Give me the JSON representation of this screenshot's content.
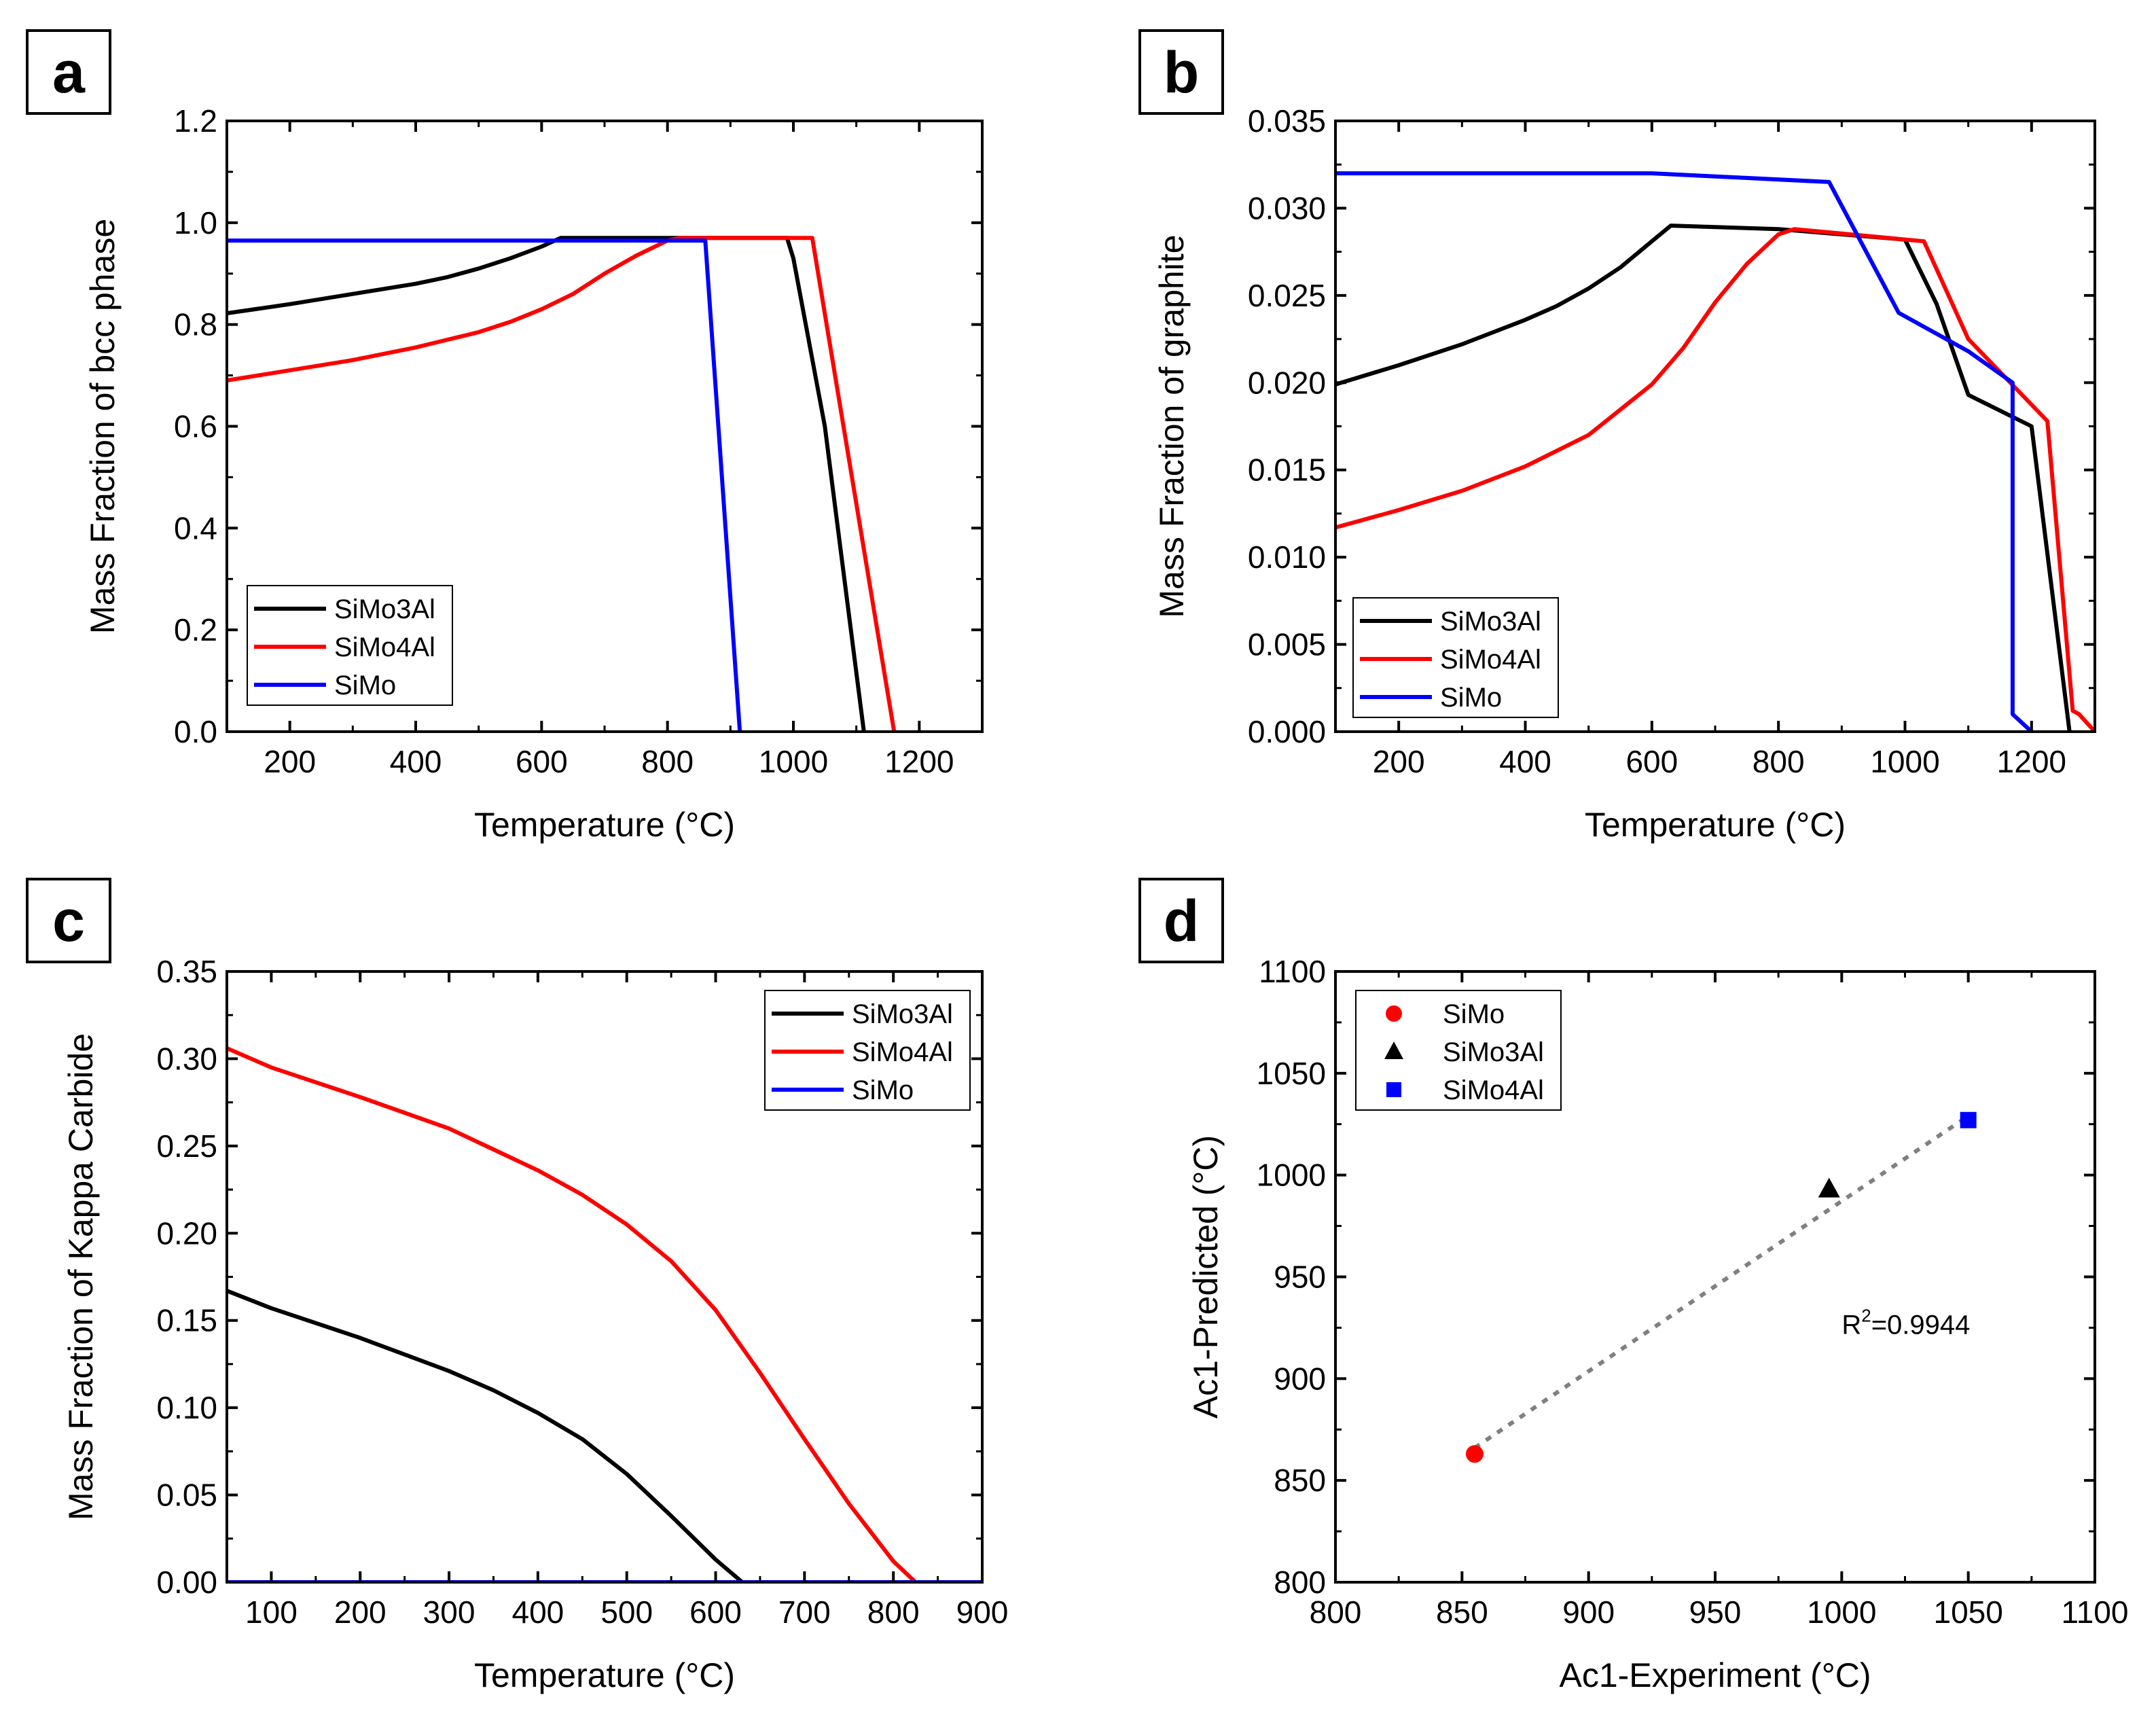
{
  "chart_data": [
    {
      "panel": "a",
      "type": "line",
      "xlabel": "Temperature (°C)",
      "ylabel": "Mass Fraction of bcc phase",
      "xlim": [
        100,
        1300
      ],
      "ylim": [
        0,
        1.2
      ],
      "xticks": [
        200,
        400,
        600,
        800,
        1000,
        1200
      ],
      "yticks": [
        0.0,
        0.2,
        0.4,
        0.6,
        0.8,
        1.0,
        1.2
      ],
      "ytick_decimals": 1,
      "legend": "bottom-left",
      "series": [
        {
          "name": "SiMo3Al",
          "color": "#000000",
          "x": [
            100,
            200,
            300,
            400,
            450,
            500,
            550,
            600,
            630,
            990,
            1000,
            1050,
            1112
          ],
          "y": [
            0.822,
            0.84,
            0.86,
            0.88,
            0.893,
            0.91,
            0.93,
            0.953,
            0.97,
            0.97,
            0.93,
            0.6,
            0.0
          ]
        },
        {
          "name": "SiMo4Al",
          "color": "#ff0000",
          "x": [
            100,
            200,
            300,
            400,
            500,
            550,
            600,
            650,
            700,
            750,
            800,
            820,
            1030,
            1160
          ],
          "y": [
            0.69,
            0.71,
            0.73,
            0.755,
            0.785,
            0.805,
            0.83,
            0.86,
            0.9,
            0.935,
            0.965,
            0.97,
            0.97,
            0.0
          ]
        },
        {
          "name": "SiMo",
          "color": "#0000ff",
          "x": [
            100,
            860,
            915
          ],
          "y": [
            0.965,
            0.965,
            0.0
          ]
        }
      ]
    },
    {
      "panel": "b",
      "type": "line",
      "xlabel": "Temperature (°C)",
      "ylabel": "Mass Fraction of graphite",
      "xlim": [
        100,
        1300
      ],
      "ylim": [
        0,
        0.035
      ],
      "xticks": [
        200,
        400,
        600,
        800,
        1000,
        1200
      ],
      "yticks": [
        0.0,
        0.005,
        0.01,
        0.015,
        0.02,
        0.025,
        0.03,
        0.035
      ],
      "ytick_decimals": 3,
      "legend": "bottom-left",
      "series": [
        {
          "name": "SiMo3Al",
          "color": "#000000",
          "x": [
            100,
            200,
            300,
            400,
            450,
            500,
            550,
            600,
            630,
            800,
            1000,
            1050,
            1100,
            1200,
            1260
          ],
          "y": [
            0.0199,
            0.021,
            0.0222,
            0.0236,
            0.0244,
            0.0254,
            0.0266,
            0.0281,
            0.029,
            0.0288,
            0.0282,
            0.0245,
            0.0193,
            0.0175,
            0.0
          ]
        },
        {
          "name": "SiMo4Al",
          "color": "#ff0000",
          "x": [
            100,
            200,
            300,
            400,
            500,
            600,
            650,
            700,
            750,
            800,
            825,
            1030,
            1100,
            1225,
            1265,
            1275,
            1300
          ],
          "y": [
            0.0117,
            0.0127,
            0.0138,
            0.0152,
            0.017,
            0.0199,
            0.022,
            0.0246,
            0.0268,
            0.0285,
            0.0288,
            0.0281,
            0.0225,
            0.0178,
            0.0012,
            0.001,
            0.0
          ]
        },
        {
          "name": "SiMo",
          "color": "#0000ff",
          "x": [
            100,
            600,
            880,
            990,
            1100,
            1170,
            1170,
            1200
          ],
          "y": [
            0.032,
            0.032,
            0.0315,
            0.024,
            0.0218,
            0.02,
            0.001,
            0.0
          ]
        }
      ]
    },
    {
      "panel": "c",
      "type": "line",
      "xlabel": "Temperature (°C)",
      "ylabel": "Mass Fraction of Kappa Carbide",
      "xlim": [
        50,
        900
      ],
      "ylim": [
        0,
        0.35
      ],
      "xticks": [
        100,
        200,
        300,
        400,
        500,
        600,
        700,
        800,
        900
      ],
      "yticks": [
        0.0,
        0.05,
        0.1,
        0.15,
        0.2,
        0.25,
        0.3,
        0.35
      ],
      "ytick_decimals": 2,
      "legend": "top-right",
      "series": [
        {
          "name": "SiMo3Al",
          "color": "#000000",
          "x": [
            50,
            100,
            200,
            300,
            350,
            400,
            450,
            500,
            550,
            600,
            630
          ],
          "y": [
            0.167,
            0.157,
            0.14,
            0.121,
            0.11,
            0.097,
            0.082,
            0.062,
            0.038,
            0.013,
            0.0
          ]
        },
        {
          "name": "SiMo4Al",
          "color": "#ff0000",
          "x": [
            50,
            100,
            200,
            300,
            350,
            400,
            450,
            500,
            550,
            600,
            650,
            700,
            750,
            800,
            825
          ],
          "y": [
            0.306,
            0.295,
            0.278,
            0.26,
            0.248,
            0.236,
            0.222,
            0.205,
            0.184,
            0.156,
            0.12,
            0.082,
            0.045,
            0.012,
            0.0
          ]
        },
        {
          "name": "SiMo",
          "color": "#0000ff",
          "x": [
            50,
            900
          ],
          "y": [
            0.0,
            0.0
          ]
        }
      ]
    },
    {
      "panel": "d",
      "type": "scatter",
      "xlabel": "Ac1-Experiment (°C)",
      "ylabel": "Ac1-Predicted (°C)",
      "xlim": [
        800,
        1100
      ],
      "ylim": [
        800,
        1100
      ],
      "xticks": [
        800,
        850,
        900,
        950,
        1000,
        1050,
        1100
      ],
      "yticks": [
        800,
        850,
        900,
        950,
        1000,
        1050,
        1100
      ],
      "ytick_decimals": 0,
      "legend": "top-left",
      "series": [
        {
          "name": "SiMo",
          "color": "#ff0000",
          "marker": "circle",
          "x": [
            855
          ],
          "y": [
            863
          ]
        },
        {
          "name": "SiMo3Al",
          "color": "#000000",
          "marker": "triangle",
          "x": [
            995
          ],
          "y": [
            993
          ]
        },
        {
          "name": "SiMo4Al",
          "color": "#0000ff",
          "marker": "square",
          "x": [
            1050
          ],
          "y": [
            1027
          ]
        }
      ],
      "fit_line": {
        "x": [
          855,
          1050
        ],
        "y": [
          866,
          1029
        ],
        "color": "#808080"
      },
      "annotation": {
        "base": "R",
        "sup": "2",
        "text": "=0.9944",
        "x": 1000,
        "y": 922
      }
    }
  ]
}
